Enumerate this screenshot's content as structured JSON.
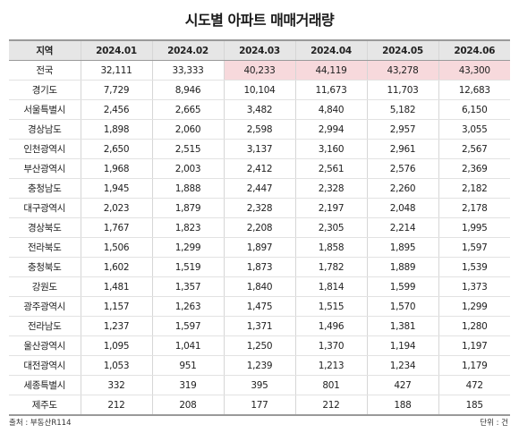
{
  "title": "시도별 아파트 매매거래량",
  "header": {
    "region": "지역",
    "months": [
      "2024.01",
      "2024.02",
      "2024.03",
      "2024.04",
      "2024.05",
      "2024.06"
    ]
  },
  "highlight_color": "#f7d9dc",
  "rows": [
    {
      "region": "전국",
      "values": [
        "32,111",
        "33,333",
        "40,233",
        "44,119",
        "43,278",
        "43,300"
      ],
      "highlighted": [
        false,
        false,
        true,
        true,
        true,
        true
      ]
    },
    {
      "region": "경기도",
      "values": [
        "7,729",
        "8,946",
        "10,104",
        "11,673",
        "11,703",
        "12,683"
      ]
    },
    {
      "region": "서울특별시",
      "values": [
        "2,456",
        "2,665",
        "3,482",
        "4,840",
        "5,182",
        "6,150"
      ]
    },
    {
      "region": "경상남도",
      "values": [
        "1,898",
        "2,060",
        "2,598",
        "2,994",
        "2,957",
        "3,055"
      ]
    },
    {
      "region": "인천광역시",
      "values": [
        "2,650",
        "2,515",
        "3,137",
        "3,160",
        "2,961",
        "2,567"
      ]
    },
    {
      "region": "부산광역시",
      "values": [
        "1,968",
        "2,003",
        "2,412",
        "2,561",
        "2,576",
        "2,369"
      ]
    },
    {
      "region": "충청남도",
      "values": [
        "1,945",
        "1,888",
        "2,447",
        "2,328",
        "2,260",
        "2,182"
      ]
    },
    {
      "region": "대구광역시",
      "values": [
        "2,023",
        "1,879",
        "2,328",
        "2,197",
        "2,048",
        "2,178"
      ]
    },
    {
      "region": "경상북도",
      "values": [
        "1,767",
        "1,823",
        "2,208",
        "2,305",
        "2,214",
        "1,995"
      ]
    },
    {
      "region": "전라북도",
      "values": [
        "1,506",
        "1,299",
        "1,897",
        "1,858",
        "1,895",
        "1,597"
      ]
    },
    {
      "region": "충청북도",
      "values": [
        "1,602",
        "1,519",
        "1,873",
        "1,782",
        "1,889",
        "1,539"
      ]
    },
    {
      "region": "강원도",
      "values": [
        "1,481",
        "1,357",
        "1,840",
        "1,814",
        "1,599",
        "1,373"
      ]
    },
    {
      "region": "광주광역시",
      "values": [
        "1,157",
        "1,263",
        "1,475",
        "1,515",
        "1,570",
        "1,299"
      ]
    },
    {
      "region": "전라남도",
      "values": [
        "1,237",
        "1,597",
        "1,371",
        "1,496",
        "1,381",
        "1,280"
      ]
    },
    {
      "region": "울산광역시",
      "values": [
        "1,095",
        "1,041",
        "1,250",
        "1,370",
        "1,194",
        "1,197"
      ]
    },
    {
      "region": "대전광역시",
      "values": [
        "1,053",
        "951",
        "1,239",
        "1,213",
        "1,234",
        "1,179"
      ]
    },
    {
      "region": "세종특별시",
      "values": [
        "332",
        "319",
        "395",
        "801",
        "427",
        "472"
      ]
    },
    {
      "region": "제주도",
      "values": [
        "212",
        "208",
        "177",
        "212",
        "188",
        "185"
      ]
    }
  ],
  "footer": {
    "source": "출처 : 부동산R114",
    "unit": "단위 : 건"
  }
}
